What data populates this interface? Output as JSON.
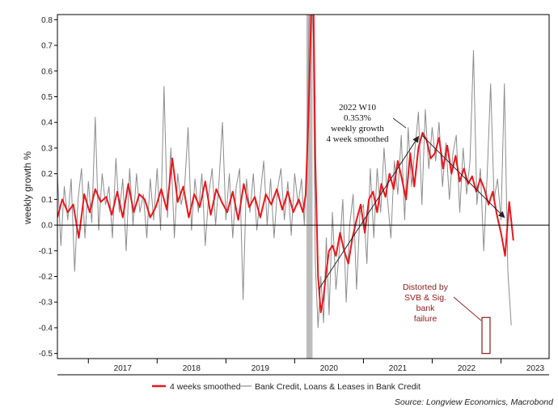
{
  "chart_data": {
    "type": "line",
    "title": "",
    "xlabel": "",
    "ylabel": "weekly growth %",
    "ylim": [
      -0.52,
      0.82
    ],
    "x_range": [
      2016.55,
      2023.7
    ],
    "yticks": [
      "0.8",
      "0.7",
      "0.6",
      "0.5",
      "0.4",
      "0.3",
      "0.2",
      "0.1",
      "0.0",
      "-0.1",
      "-0.2",
      "-0.3",
      "-0.4",
      "-0.5"
    ],
    "xticks": [
      "2017",
      "2018",
      "2019",
      "2020",
      "2021",
      "2022",
      "2023"
    ],
    "grid": false,
    "legend_position": "bottom",
    "shaded_period": {
      "start": 2020.17,
      "end": 2020.26
    },
    "series": [
      {
        "name": "4 weeks smoothed",
        "color": "#e8161c",
        "x": [
          2016.55,
          2016.62,
          2016.7,
          2016.78,
          2016.86,
          2016.94,
          2017.02,
          2017.1,
          2017.18,
          2017.26,
          2017.34,
          2017.42,
          2017.5,
          2017.58,
          2017.66,
          2017.74,
          2017.82,
          2017.9,
          2017.98,
          2018.06,
          2018.14,
          2018.22,
          2018.3,
          2018.38,
          2018.46,
          2018.54,
          2018.62,
          2018.7,
          2018.78,
          2018.86,
          2018.94,
          2019.02,
          2019.1,
          2019.18,
          2019.26,
          2019.34,
          2019.42,
          2019.5,
          2019.58,
          2019.66,
          2019.74,
          2019.82,
          2019.9,
          2019.98,
          2020.06,
          2020.12,
          2020.16,
          2020.2,
          2020.24,
          2020.27,
          2020.3,
          2020.34,
          2020.38,
          2020.42,
          2020.46,
          2020.5,
          2020.55,
          2020.6,
          2020.66,
          2020.72,
          2020.78,
          2020.84,
          2020.9,
          2020.96,
          2021.02,
          2021.08,
          2021.14,
          2021.2,
          2021.26,
          2021.32,
          2021.38,
          2021.44,
          2021.5,
          2021.56,
          2021.62,
          2021.68,
          2021.74,
          2021.8,
          2021.86,
          2021.92,
          2021.98,
          2022.04,
          2022.1,
          2022.16,
          2022.22,
          2022.28,
          2022.34,
          2022.4,
          2022.46,
          2022.52,
          2022.58,
          2022.64,
          2022.7,
          2022.76,
          2022.82,
          2022.88,
          2022.94,
          2023.0,
          2023.06,
          2023.12,
          2023.18
        ],
        "values": [
          0.03,
          0.1,
          0.05,
          0.08,
          -0.05,
          0.12,
          0.05,
          0.14,
          0.09,
          0.11,
          0.04,
          0.13,
          0.03,
          0.16,
          0.05,
          0.12,
          0.1,
          0.03,
          0.07,
          0.14,
          0.06,
          0.26,
          0.09,
          0.15,
          0.03,
          0.12,
          0.07,
          0.17,
          0.04,
          0.14,
          0.09,
          0.05,
          0.13,
          0.02,
          0.16,
          0.07,
          0.11,
          0.03,
          0.12,
          0.08,
          0.14,
          0.06,
          0.13,
          0.05,
          0.1,
          0.05,
          0.12,
          0.42,
          0.82,
          0.95,
          0.25,
          -0.2,
          -0.34,
          -0.28,
          -0.18,
          -0.1,
          -0.08,
          -0.12,
          -0.03,
          -0.1,
          -0.15,
          -0.05,
          0.02,
          0.08,
          -0.03,
          0.1,
          0.13,
          0.05,
          0.16,
          0.11,
          0.2,
          0.14,
          0.25,
          0.18,
          0.1,
          0.28,
          0.15,
          0.3,
          0.36,
          0.33,
          0.26,
          0.28,
          0.34,
          0.22,
          0.31,
          0.2,
          0.27,
          0.17,
          0.22,
          0.16,
          0.19,
          0.13,
          0.18,
          0.14,
          0.08,
          0.13,
          0.04,
          -0.03,
          -0.12,
          0.09,
          -0.06
        ],
        "line_width": 2
      },
      {
        "name": "Bank Credit, Loans & Leases in Bank Credit",
        "color": "#8c8c8c",
        "x": [
          2016.55,
          2016.6,
          2016.65,
          2016.7,
          2016.75,
          2016.8,
          2016.85,
          2016.9,
          2016.95,
          2017.0,
          2017.05,
          2017.1,
          2017.15,
          2017.2,
          2017.25,
          2017.3,
          2017.35,
          2017.4,
          2017.45,
          2017.5,
          2017.55,
          2017.6,
          2017.65,
          2017.7,
          2017.75,
          2017.8,
          2017.85,
          2017.9,
          2017.95,
          2018.0,
          2018.05,
          2018.1,
          2018.15,
          2018.2,
          2018.25,
          2018.3,
          2018.35,
          2018.4,
          2018.45,
          2018.5,
          2018.55,
          2018.6,
          2018.65,
          2018.7,
          2018.75,
          2018.8,
          2018.85,
          2018.9,
          2018.95,
          2019.0,
          2019.05,
          2019.1,
          2019.15,
          2019.2,
          2019.25,
          2019.3,
          2019.35,
          2019.4,
          2019.45,
          2019.5,
          2019.55,
          2019.6,
          2019.65,
          2019.7,
          2019.75,
          2019.8,
          2019.85,
          2019.9,
          2019.95,
          2020.0,
          2020.05,
          2020.1,
          2020.14,
          2020.18,
          2020.21,
          2020.24,
          2020.27,
          2020.3,
          2020.34,
          2020.38,
          2020.42,
          2020.46,
          2020.5,
          2020.55,
          2020.6,
          2020.65,
          2020.7,
          2020.75,
          2020.8,
          2020.85,
          2020.9,
          2020.95,
          2021.0,
          2021.05,
          2021.1,
          2021.15,
          2021.2,
          2021.25,
          2021.3,
          2021.35,
          2021.4,
          2021.45,
          2021.5,
          2021.55,
          2021.6,
          2021.65,
          2021.7,
          2021.75,
          2021.8,
          2021.85,
          2021.9,
          2021.95,
          2022.0,
          2022.05,
          2022.1,
          2022.15,
          2022.2,
          2022.25,
          2022.3,
          2022.35,
          2022.4,
          2022.45,
          2022.5,
          2022.55,
          2022.6,
          2022.65,
          2022.7,
          2022.75,
          2022.8,
          2022.85,
          2022.9,
          2022.95,
          2023.0,
          2023.05,
          2023.1,
          2023.15
        ],
        "values": [
          0.2,
          -0.08,
          0.15,
          0.02,
          0.18,
          -0.18,
          0.1,
          0.22,
          -0.05,
          0.17,
          0.01,
          0.42,
          -0.02,
          0.2,
          0.08,
          0.15,
          -0.05,
          0.26,
          0.05,
          0.18,
          -0.1,
          0.22,
          0.0,
          0.2,
          0.05,
          0.12,
          -0.05,
          0.18,
          0.02,
          0.22,
          -0.02,
          0.54,
          0.03,
          0.3,
          -0.05,
          0.2,
          0.08,
          0.15,
          0.38,
          -0.02,
          0.18,
          0.05,
          0.2,
          -0.08,
          0.12,
          0.22,
          0.0,
          0.17,
          0.4,
          0.02,
          0.2,
          -0.05,
          0.15,
          0.22,
          -0.29,
          0.18,
          0.05,
          0.2,
          -0.02,
          0.12,
          0.25,
          0.0,
          0.18,
          -0.05,
          0.14,
          0.22,
          0.02,
          0.17,
          -0.04,
          0.2,
          0.08,
          0.18,
          0.0,
          0.3,
          0.8,
          1.0,
          0.75,
          -0.15,
          -0.4,
          -0.2,
          -0.38,
          -0.05,
          -0.35,
          0.05,
          -0.25,
          -0.1,
          0.1,
          -0.3,
          0.0,
          0.12,
          -0.25,
          0.05,
          0.08,
          -0.15,
          0.22,
          -0.05,
          0.22,
          0.05,
          0.3,
          0.1,
          -0.05,
          0.25,
          0.12,
          0.35,
          0.02,
          0.38,
          0.15,
          0.3,
          0.44,
          0.08,
          0.45,
          0.22,
          0.38,
          0.25,
          0.4,
          0.15,
          0.32,
          0.1,
          0.28,
          0.35,
          0.05,
          0.3,
          0.12,
          0.25,
          0.68,
          0.08,
          0.22,
          -0.1,
          0.2,
          0.55,
          0.1,
          0.18,
          0.02,
          0.55,
          -0.18,
          -0.39
        ],
        "line_width": 1
      }
    ],
    "annotations": {
      "peak_lines": [
        "2022 W10",
        "0.353%",
        "weekly growth",
        "4 week smoothed"
      ],
      "distorted_lines": [
        "Distorted by",
        "SVB & Sig.",
        "bank",
        "failure"
      ]
    }
  },
  "legend": {
    "items": [
      {
        "label": "4 weeks smoothed",
        "color": "#e8161c"
      },
      {
        "label": "Bank Credit, Loans & Leases in Bank Credit",
        "color": "#8c8c8c"
      }
    ]
  },
  "source": "Source: Longview Economics, Macrobond"
}
